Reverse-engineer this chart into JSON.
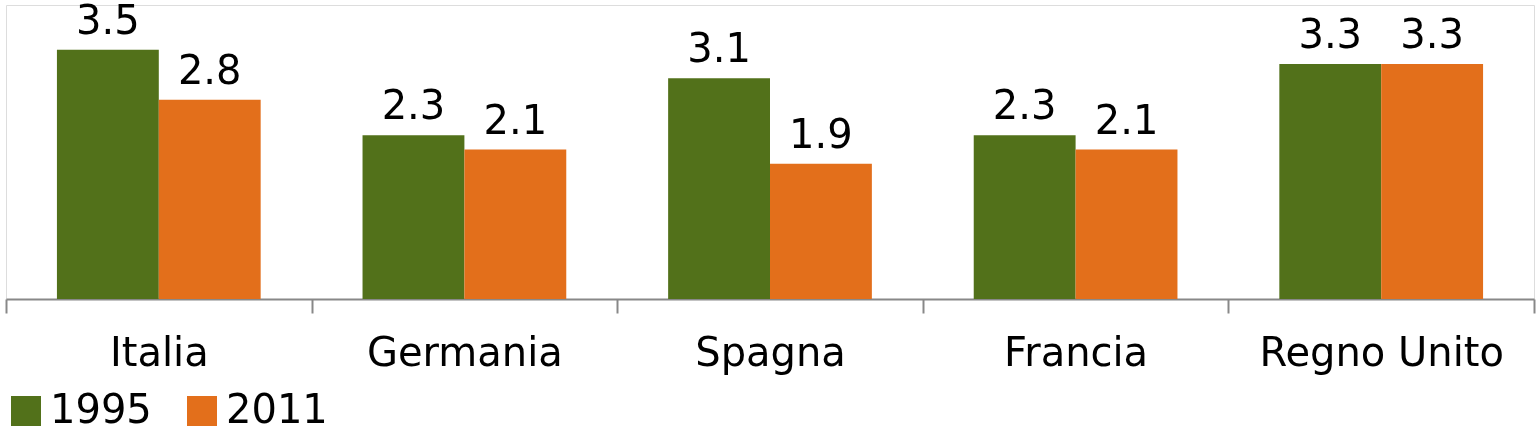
{
  "chart_data": {
    "type": "bar",
    "categories": [
      "Italia",
      "Germania",
      "Spagna",
      "Francia",
      "Regno Unito"
    ],
    "series": [
      {
        "name": "1995",
        "color": "#52711a",
        "values": [
          3.5,
          2.3,
          3.1,
          2.3,
          3.3
        ]
      },
      {
        "name": "2011",
        "color": "#e36f1b",
        "values": [
          2.8,
          2.1,
          1.9,
          2.1,
          3.3
        ]
      }
    ],
    "data_labels": true,
    "legend": "bottom"
  }
}
